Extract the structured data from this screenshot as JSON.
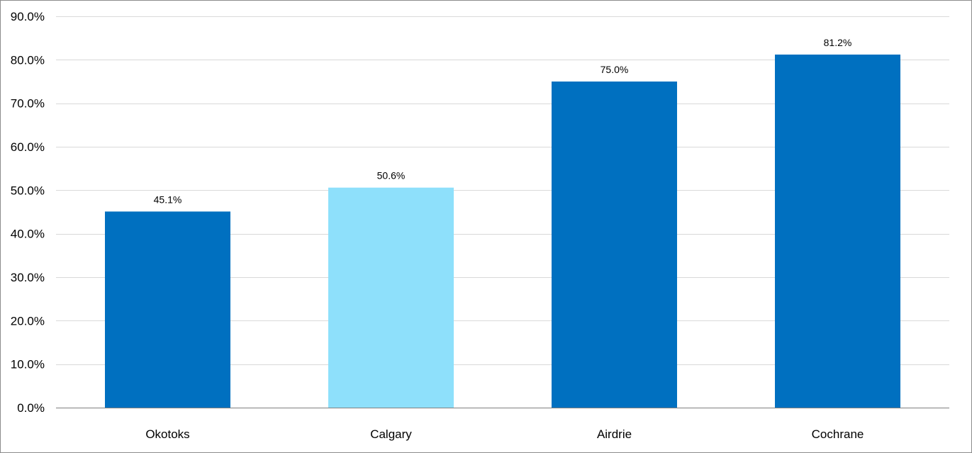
{
  "chart_data": {
    "type": "bar",
    "categories": [
      "Okotoks",
      "Calgary",
      "Airdrie",
      "Cochrane"
    ],
    "values": [
      45.1,
      50.6,
      75.0,
      81.2
    ],
    "data_labels": [
      "45.1%",
      "50.6%",
      "75.0%",
      "81.2%"
    ],
    "bar_colors": [
      "#0070c0",
      "#8ee0fb",
      "#0070c0",
      "#0070c0"
    ],
    "title": "",
    "xlabel": "",
    "ylabel": "",
    "ylim": [
      0,
      90
    ],
    "y_ticks": [
      0,
      10,
      20,
      30,
      40,
      50,
      60,
      70,
      80,
      90
    ],
    "y_tick_labels": [
      "0.0%",
      "10.0%",
      "20.0%",
      "30.0%",
      "40.0%",
      "50.0%",
      "60.0%",
      "70.0%",
      "80.0%",
      "90.0%"
    ],
    "grid": true,
    "legend": "none",
    "gridline_color": "#d9d9d9",
    "axis_color": "#808080"
  }
}
